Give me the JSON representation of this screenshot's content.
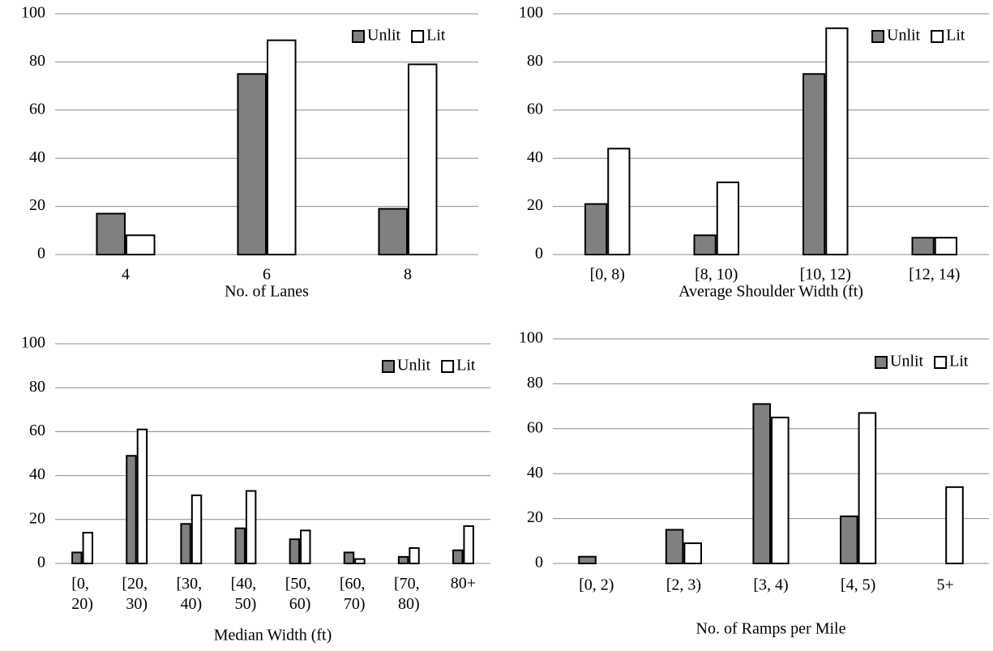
{
  "chart_data": [
    {
      "type": "bar",
      "x_label": "No. of Lanes",
      "categories": [
        "4",
        "6",
        "8"
      ],
      "series": [
        {
          "name": "Unlit",
          "color": "#808080",
          "values": [
            17,
            75,
            19
          ]
        },
        {
          "name": "Lit",
          "color": "#ffffff",
          "values": [
            8,
            89,
            79
          ]
        }
      ],
      "ylim": [
        0,
        100
      ],
      "yticks": [
        0,
        20,
        40,
        60,
        80,
        100
      ],
      "grid": true,
      "legend": "upper right"
    },
    {
      "type": "bar",
      "x_label": "Average Shoulder Width (ft)",
      "categories": [
        "[0, 8)",
        "[8, 10)",
        "[10, 12)",
        "[12, 14)"
      ],
      "series": [
        {
          "name": "Unlit",
          "color": "#808080",
          "values": [
            21,
            8,
            75,
            7
          ]
        },
        {
          "name": "Lit",
          "color": "#ffffff",
          "values": [
            44,
            30,
            94,
            7
          ]
        }
      ],
      "ylim": [
        0,
        100
      ],
      "yticks": [
        0,
        20,
        40,
        60,
        80,
        100
      ],
      "grid": true,
      "legend": "upper right"
    },
    {
      "type": "bar",
      "x_label": "Median Width (ft)",
      "categories": [
        "[0, 20)",
        "[20, 30)",
        "[30, 40)",
        "[40, 50)",
        "[50, 60)",
        "[60, 70)",
        "[70, 80)",
        "80+"
      ],
      "series": [
        {
          "name": "Unlit",
          "color": "#808080",
          "values": [
            5,
            49,
            18,
            16,
            11,
            5,
            3,
            6
          ]
        },
        {
          "name": "Lit",
          "color": "#ffffff",
          "values": [
            14,
            61,
            31,
            33,
            15,
            2,
            7,
            17
          ]
        }
      ],
      "ylim": [
        0,
        100
      ],
      "yticks": [
        0,
        20,
        40,
        60,
        80,
        100
      ],
      "grid": true,
      "legend": "upper right"
    },
    {
      "type": "bar",
      "x_label": "No. of Ramps per Mile",
      "categories": [
        "[0, 2)",
        "[2, 3)",
        "[3, 4)",
        "[4, 5)",
        "5+"
      ],
      "series": [
        {
          "name": "Unlit",
          "color": "#808080",
          "values": [
            3,
            15,
            71,
            21,
            0
          ]
        },
        {
          "name": "Lit",
          "color": "#ffffff",
          "values": [
            0,
            9,
            65,
            67,
            34
          ]
        }
      ],
      "ylim": [
        0,
        100
      ],
      "yticks": [
        0,
        20,
        40,
        60,
        80,
        100
      ],
      "grid": true,
      "legend": "upper right"
    }
  ]
}
